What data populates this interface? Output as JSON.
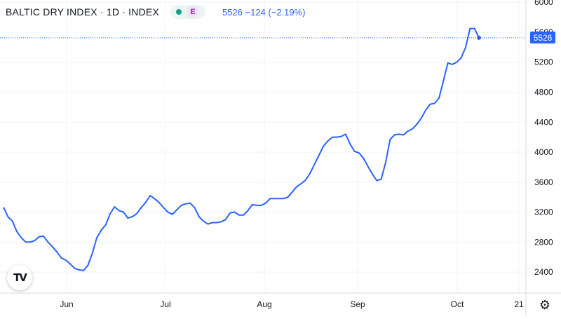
{
  "header": {
    "title": "BALTIC DRY INDEX · 1D · INDEX",
    "badge": "E",
    "quote": "5526 −124 (−2.19%)"
  },
  "last_price_label": "5526",
  "logo_text": "TV",
  "settings_icon": "gear-icon",
  "colors": {
    "line": "#2962ff",
    "grid": "#f0f3fa",
    "text": "#131722"
  },
  "chart_data": {
    "type": "line",
    "title": "BALTIC DRY INDEX",
    "x_tick_labels": [
      "Jun",
      "Jul",
      "Aug",
      "Sep",
      "Oct",
      "21"
    ],
    "y_tick_labels": [
      "2400",
      "2800",
      "3200",
      "3600",
      "4000",
      "4400",
      "4800",
      "5200",
      "5600",
      "6000"
    ],
    "ylim": [
      2120,
      6030
    ],
    "last_value": 5526,
    "series": [
      {
        "values": [
          3265,
          3140,
          3080,
          2940,
          2860,
          2800,
          2800,
          2820,
          2870,
          2880,
          2800,
          2740,
          2670,
          2590,
          2560,
          2510,
          2450,
          2430,
          2420,
          2490,
          2650,
          2860,
          2960,
          3030,
          3180,
          3270,
          3220,
          3200,
          3120,
          3140,
          3180,
          3260,
          3330,
          3420,
          3380,
          3330,
          3260,
          3200,
          3170,
          3230,
          3290,
          3310,
          3320,
          3260,
          3140,
          3080,
          3040,
          3060,
          3060,
          3070,
          3100,
          3190,
          3200,
          3160,
          3160,
          3220,
          3300,
          3290,
          3290,
          3320,
          3380,
          3380,
          3380,
          3380,
          3400,
          3470,
          3540,
          3580,
          3630,
          3720,
          3840,
          3960,
          4080,
          4150,
          4200,
          4200,
          4210,
          4240,
          4110,
          4010,
          3990,
          3920,
          3810,
          3710,
          3620,
          3640,
          3860,
          4170,
          4230,
          4240,
          4230,
          4280,
          4310,
          4370,
          4450,
          4560,
          4640,
          4650,
          4720,
          4950,
          5190,
          5170,
          5200,
          5260,
          5400,
          5650,
          5650,
          5526
        ]
      }
    ]
  }
}
